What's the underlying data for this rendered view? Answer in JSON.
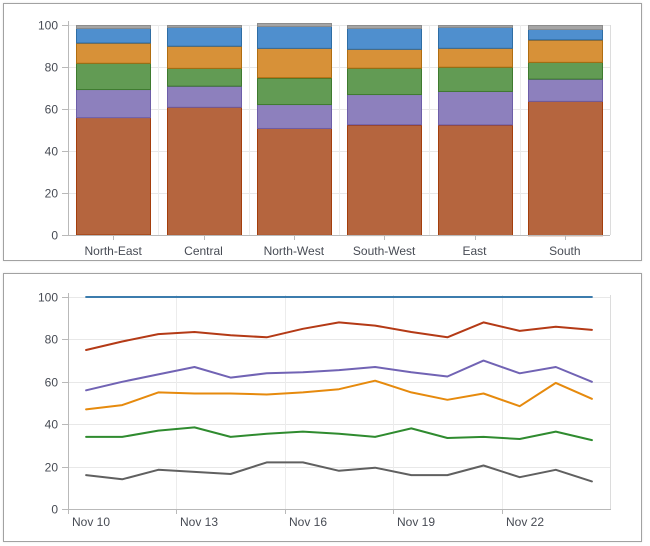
{
  "canvas": {
    "background": "#ffffff",
    "panel_border": "#a2a2a2",
    "text_color": "#474b54",
    "grid_color": "#e8e8e8",
    "axis_color": "#b9b9b9",
    "plot_edge_color": "#dcdcdc"
  },
  "chart_data": [
    {
      "type": "bar",
      "stacked": true,
      "normalized_to_100": true,
      "title": "",
      "legend": "none",
      "grid": true,
      "ylim": [
        0,
        100
      ],
      "y_ticks": [
        "0",
        "20",
        "40",
        "60",
        "80",
        "100"
      ],
      "y_tick_values": [
        0,
        20,
        40,
        60,
        80,
        100
      ],
      "categories": [
        "North-East",
        "Central",
        "North-West",
        "South-West",
        "East",
        "South"
      ],
      "series": [
        {
          "name": "segment-rust",
          "color": "#b5653e",
          "border": "#a43e0c",
          "values": [
            56,
            61,
            51,
            52.5,
            52.5,
            64
          ]
        },
        {
          "name": "segment-purple",
          "color": "#8d80bd",
          "border": "#6d5ea8",
          "values": [
            13.5,
            10,
            11.5,
            14.5,
            16,
            10.5
          ]
        },
        {
          "name": "segment-green",
          "color": "#629b54",
          "border": "#3e7a2e",
          "values": [
            12.5,
            8.5,
            12.5,
            12.5,
            11.5,
            8
          ]
        },
        {
          "name": "segment-orange",
          "color": "#d79138",
          "border": "#b06d10",
          "values": [
            9.5,
            10.5,
            14,
            9,
            9,
            10.5
          ]
        },
        {
          "name": "segment-blue",
          "color": "#4f8fce",
          "border": "#2e6da4",
          "values": [
            7,
            9,
            10.5,
            10,
            10,
            5
          ]
        },
        {
          "name": "segment-gray",
          "color": "#a5a5a5",
          "border": "#8c8c8c",
          "values": [
            1.5,
            1,
            1.5,
            1.5,
            1,
            2
          ]
        }
      ]
    },
    {
      "type": "line",
      "title": "",
      "legend": "none",
      "grid": true,
      "ylim": [
        0,
        100
      ],
      "y_ticks": [
        "0",
        "20",
        "40",
        "60",
        "80",
        "100"
      ],
      "y_tick_values": [
        0,
        20,
        40,
        60,
        80,
        100
      ],
      "n_points": 15,
      "x_tick_labels": [
        "Nov 10",
        "Nov 13",
        "Nov 16",
        "Nov 19",
        "Nov 22"
      ],
      "x_tick_point_index": [
        0,
        3,
        6,
        9,
        12
      ],
      "series": [
        {
          "name": "line-blue",
          "color": "#3c7cad",
          "values": [
            100,
            100,
            100,
            100,
            100,
            100,
            100,
            100,
            100,
            100,
            100,
            100,
            100,
            100,
            100
          ]
        },
        {
          "name": "line-red",
          "color": "#b43a16",
          "values": [
            75,
            79,
            82.5,
            83.5,
            82,
            81,
            85,
            88,
            86.5,
            83.5,
            81,
            88,
            84,
            86,
            84.5
          ]
        },
        {
          "name": "line-purple",
          "color": "#7163b4",
          "values": [
            56,
            60,
            63.5,
            67,
            62,
            64,
            64.5,
            65.5,
            67,
            64.5,
            62.5,
            70,
            64,
            67,
            60
          ]
        },
        {
          "name": "line-orange",
          "color": "#e68a0d",
          "values": [
            47,
            49,
            55,
            54.5,
            54.5,
            54,
            55,
            56.5,
            60.5,
            55,
            51.5,
            54.5,
            48.5,
            59.5,
            52
          ]
        },
        {
          "name": "line-green",
          "color": "#2f8b2f",
          "values": [
            34,
            34,
            37,
            38.5,
            34,
            35.5,
            36.5,
            35.5,
            34,
            38,
            33.5,
            34,
            33,
            36.5,
            32.5
          ]
        },
        {
          "name": "line-gray",
          "color": "#606060",
          "values": [
            16,
            14,
            18.5,
            17.5,
            16.5,
            22,
            22,
            18,
            19.5,
            16,
            16,
            20.5,
            15,
            18.5,
            13
          ]
        }
      ]
    }
  ]
}
